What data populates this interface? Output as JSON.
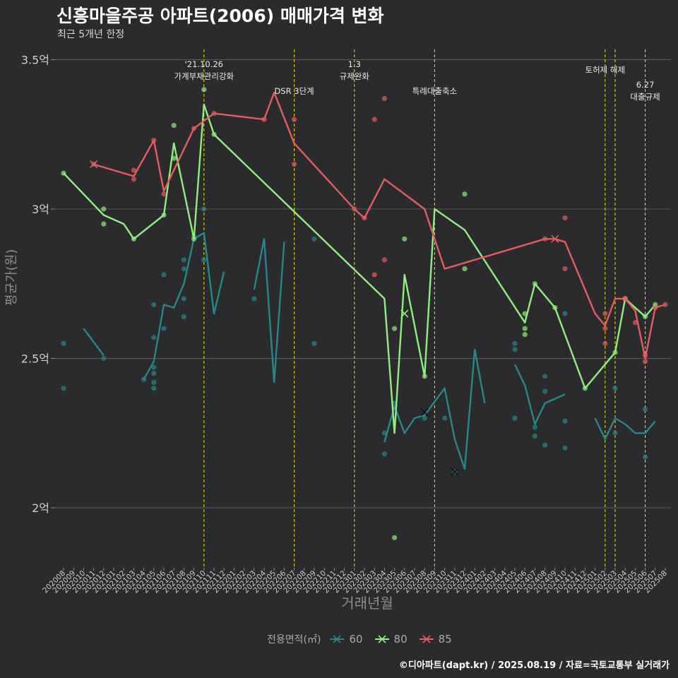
{
  "title": "신흥마을주공 아파트(2006) 매매가격 변화",
  "subtitle": "최근 5개년 한정",
  "caption": "©디아파트(dapt.kr) / 2025.08.19 / 자료=국토교통부 실거래가",
  "legend": {
    "title": "전용면적(㎡)",
    "items": [
      {
        "label": "60",
        "color": "#26878a"
      },
      {
        "label": "80",
        "color": "#90ee7e"
      },
      {
        "label": "85",
        "color": "#e35d5d"
      }
    ]
  },
  "chart_data": {
    "type": "line",
    "xlabel": "거래년월",
    "ylabel": "평균가(원)",
    "ylim": [
      1.8,
      3.55
    ],
    "y_ticks": [
      {
        "value": 2.0,
        "label": "2억"
      },
      {
        "value": 2.5,
        "label": "2.5억"
      },
      {
        "value": 3.0,
        "label": "3억"
      },
      {
        "value": 3.5,
        "label": "3.5억"
      }
    ],
    "categories": [
      "202008",
      "202009",
      "202010",
      "202011",
      "202012",
      "202101",
      "202102",
      "202103",
      "202104",
      "202105",
      "202106",
      "202107",
      "202108",
      "202109",
      "202110",
      "202111",
      "202112",
      "202201",
      "202202",
      "202203",
      "202204",
      "202205",
      "202206",
      "202207",
      "202208",
      "202209",
      "202210",
      "202211",
      "202212",
      "202301",
      "202302",
      "202303",
      "202304",
      "202305",
      "202306",
      "202307",
      "202308",
      "202309",
      "202310",
      "202311",
      "202312",
      "202401",
      "202402",
      "202403",
      "202404",
      "202405",
      "202406",
      "202407",
      "202408",
      "202409",
      "202410",
      "202411",
      "202412",
      "202501",
      "202502",
      "202503",
      "202504",
      "202505",
      "202506",
      "202507",
      "202508"
    ],
    "policy_events": [
      {
        "x": "202110",
        "label": "'21.10.26\n가계부채관리강화"
      },
      {
        "x": "202207",
        "label": "DSR 3단계"
      },
      {
        "x": "202301",
        "label": "1.3\n규제완화"
      },
      {
        "x": "202309",
        "label": "특례대출축소"
      },
      {
        "x": "202502",
        "label": "토허제 해제"
      },
      {
        "x": "202503",
        "label": ""
      },
      {
        "x": "202506",
        "label": "6.27\n대출규제"
      }
    ],
    "series": [
      {
        "name": "60",
        "color": "#26878a",
        "lines": [
          [
            [
              "202010",
              2.6
            ],
            [
              "202012",
              2.51
            ]
          ],
          [
            [
              "202104",
              2.43
            ],
            [
              "202105",
              2.49
            ],
            [
              "202106",
              2.68
            ],
            [
              "202107",
              2.67
            ],
            [
              "202108",
              2.75
            ],
            [
              "202109",
              2.9
            ],
            [
              "202110",
              2.92
            ],
            [
              "202111",
              2.65
            ],
            [
              "202112",
              2.79
            ]
          ],
          [
            [
              "202203",
              2.73
            ],
            [
              "202204",
              2.9
            ],
            [
              "202205",
              2.42
            ],
            [
              "202206",
              2.89
            ]
          ],
          [
            [
              "202304",
              2.22
            ],
            [
              "202305",
              2.34
            ],
            [
              "202306",
              2.25
            ],
            [
              "202307",
              2.3
            ],
            [
              "202308",
              2.31
            ],
            [
              "202310",
              2.4
            ],
            [
              "202311",
              2.23
            ],
            [
              "202312",
              2.13
            ],
            [
              "202401",
              2.53
            ],
            [
              "202402",
              2.35
            ]
          ],
          [
            [
              "202405",
              2.48
            ],
            [
              "202406",
              2.41
            ],
            [
              "202407",
              2.28
            ],
            [
              "202408",
              2.35
            ],
            [
              "202410",
              2.38
            ]
          ],
          [
            [
              "202501",
              2.3
            ],
            [
              "202502",
              2.23
            ],
            [
              "202503",
              2.3
            ],
            [
              "202504",
              2.28
            ],
            [
              "202505",
              2.25
            ],
            [
              "202506",
              2.25
            ],
            [
              "202507",
              2.29
            ]
          ]
        ],
        "points": [
          [
            "202008",
            2.55
          ],
          [
            "202008",
            2.4
          ],
          [
            "202012",
            2.5
          ],
          [
            "202104",
            2.43
          ],
          [
            "202105",
            2.68
          ],
          [
            "202105",
            2.57
          ],
          [
            "202105",
            2.47
          ],
          [
            "202105",
            2.45
          ],
          [
            "202105",
            2.42
          ],
          [
            "202105",
            2.4
          ],
          [
            "202106",
            2.78
          ],
          [
            "202106",
            2.6
          ],
          [
            "202108",
            2.83
          ],
          [
            "202108",
            2.8
          ],
          [
            "202108",
            2.7
          ],
          [
            "202108",
            2.64
          ],
          [
            "202109",
            2.91
          ],
          [
            "202110",
            3.0
          ],
          [
            "202110",
            2.83
          ],
          [
            "202203",
            2.7
          ],
          [
            "202209",
            2.9
          ],
          [
            "202209",
            2.55
          ],
          [
            "202304",
            2.25
          ],
          [
            "202304",
            2.18
          ],
          [
            "202305",
            2.35
          ],
          [
            "202308",
            2.3
          ],
          [
            "202310",
            2.3
          ],
          [
            "202311",
            2.12
          ],
          [
            "202405",
            2.55
          ],
          [
            "202405",
            2.53
          ],
          [
            "202405",
            2.3
          ],
          [
            "202407",
            2.27
          ],
          [
            "202407",
            2.24
          ],
          [
            "202408",
            2.44
          ],
          [
            "202408",
            2.39
          ],
          [
            "202408",
            2.21
          ],
          [
            "202410",
            2.65
          ],
          [
            "202410",
            2.29
          ],
          [
            "202410",
            2.2
          ],
          [
            "202503",
            2.4
          ],
          [
            "202503",
            2.25
          ],
          [
            "202506",
            2.33
          ],
          [
            "202506",
            2.17
          ]
        ],
        "crosses": [
          [
            "202308",
            2.32
          ],
          [
            "202311",
            2.12
          ]
        ]
      },
      {
        "name": "80",
        "color": "#90ee7e",
        "lines": [
          [
            [
              "202008",
              3.12
            ],
            [
              "202012",
              2.98
            ],
            [
              "202102",
              2.95
            ],
            [
              "202103",
              2.9
            ],
            [
              "202106",
              2.98
            ],
            [
              "202107",
              3.22
            ],
            [
              "202109",
              2.9
            ],
            [
              "202110",
              3.35
            ],
            [
              "202111",
              3.25
            ],
            [
              "202304",
              2.7
            ],
            [
              "202305",
              2.25
            ],
            [
              "202306",
              2.78
            ],
            [
              "202308",
              2.44
            ],
            [
              "202309",
              3.0
            ],
            [
              "202312",
              2.93
            ],
            [
              "202406",
              2.62
            ],
            [
              "202407",
              2.75
            ],
            [
              "202409",
              2.67
            ],
            [
              "202412",
              2.4
            ],
            [
              "202503",
              2.52
            ],
            [
              "202504",
              2.7
            ],
            [
              "202506",
              2.64
            ],
            [
              "202507",
              2.68
            ]
          ]
        ],
        "points": [
          [
            "202008",
            3.12
          ],
          [
            "202012",
            3.0
          ],
          [
            "202012",
            2.95
          ],
          [
            "202103",
            2.9
          ],
          [
            "202106",
            2.98
          ],
          [
            "202107",
            3.28
          ],
          [
            "202107",
            3.17
          ],
          [
            "202109",
            2.9
          ],
          [
            "202110",
            3.4
          ],
          [
            "202111",
            3.25
          ],
          [
            "202305",
            2.6
          ],
          [
            "202305",
            1.9
          ],
          [
            "202306",
            2.9
          ],
          [
            "202308",
            2.44
          ],
          [
            "202312",
            3.05
          ],
          [
            "202312",
            2.8
          ],
          [
            "202406",
            2.65
          ],
          [
            "202406",
            2.6
          ],
          [
            "202406",
            2.58
          ],
          [
            "202407",
            2.75
          ],
          [
            "202409",
            2.67
          ],
          [
            "202412",
            2.4
          ],
          [
            "202503",
            2.52
          ],
          [
            "202504",
            2.7
          ],
          [
            "202506",
            2.64
          ],
          [
            "202507",
            2.68
          ]
        ],
        "crosses": [
          [
            "202306",
            2.65
          ]
        ]
      },
      {
        "name": "85",
        "color": "#e35d5d",
        "lines": [
          [
            [
              "202011",
              3.15
            ],
            [
              "202103",
              3.11
            ],
            [
              "202105",
              3.23
            ],
            [
              "202106",
              3.06
            ],
            [
              "202109",
              3.27
            ],
            [
              "202111",
              3.32
            ],
            [
              "202204",
              3.3
            ],
            [
              "202205",
              3.39
            ],
            [
              "202207",
              3.22
            ],
            [
              "202301",
              3.0
            ],
            [
              "202302",
              2.97
            ],
            [
              "202304",
              3.1
            ],
            [
              "202308",
              3.0
            ],
            [
              "202310",
              2.8
            ],
            [
              "202408",
              2.9
            ],
            [
              "202409",
              2.9
            ],
            [
              "202410",
              2.89
            ],
            [
              "202501",
              2.65
            ],
            [
              "202502",
              2.61
            ],
            [
              "202503",
              2.7
            ],
            [
              "202504",
              2.7
            ],
            [
              "202505",
              2.66
            ],
            [
              "202506",
              2.5
            ],
            [
              "202507",
              2.67
            ],
            [
              "202508",
              2.68
            ]
          ]
        ],
        "points": [
          [
            "202011",
            3.15
          ],
          [
            "202103",
            3.13
          ],
          [
            "202103",
            3.1
          ],
          [
            "202105",
            3.23
          ],
          [
            "202106",
            3.05
          ],
          [
            "202109",
            3.27
          ],
          [
            "202111",
            3.32
          ],
          [
            "202204",
            3.3
          ],
          [
            "202207",
            3.3
          ],
          [
            "202207",
            3.15
          ],
          [
            "202301",
            3.0
          ],
          [
            "202302",
            2.97
          ],
          [
            "202303",
            3.3
          ],
          [
            "202303",
            2.78
          ],
          [
            "202304",
            3.37
          ],
          [
            "202304",
            2.83
          ],
          [
            "202408",
            2.9
          ],
          [
            "202410",
            2.97
          ],
          [
            "202410",
            2.8
          ],
          [
            "202502",
            2.65
          ],
          [
            "202502",
            2.6
          ],
          [
            "202502",
            2.55
          ],
          [
            "202504",
            2.7
          ],
          [
            "202505",
            2.62
          ],
          [
            "202506",
            2.51
          ],
          [
            "202506",
            2.49
          ],
          [
            "202507",
            2.67
          ],
          [
            "202508",
            2.68
          ]
        ],
        "crosses": [
          [
            "202011",
            3.15
          ],
          [
            "202409",
            2.9
          ]
        ]
      }
    ]
  }
}
